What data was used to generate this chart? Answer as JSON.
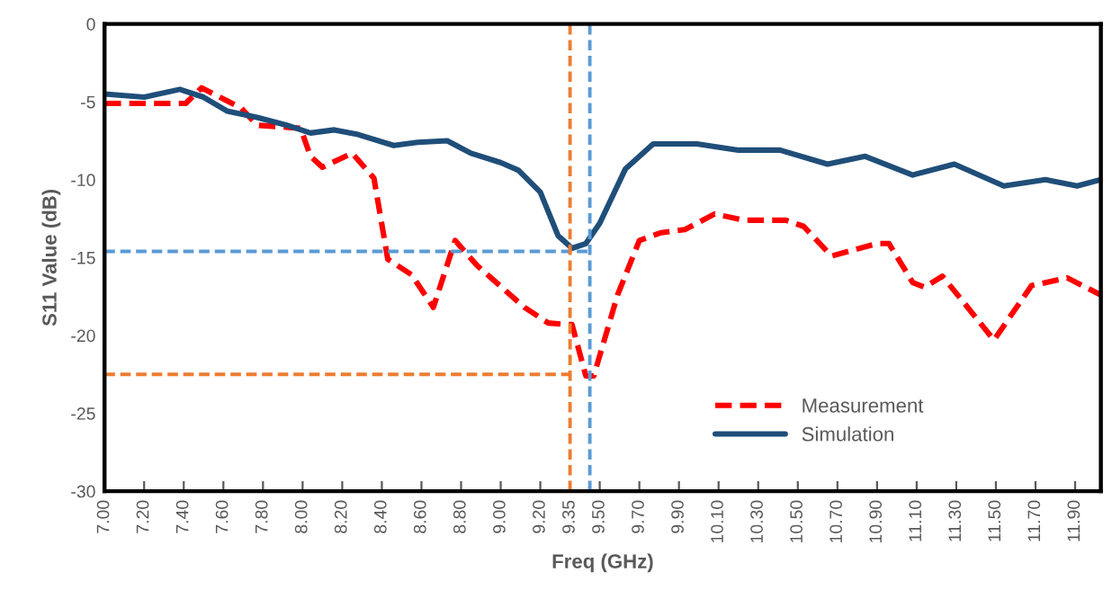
{
  "chart_data": {
    "type": "line",
    "xlabel": "Freq (GHz)",
    "ylabel": "S11 Value (dB)",
    "xlim": [
      7.0,
      12.03
    ],
    "ylim": [
      -30,
      0
    ],
    "xticks": [
      {
        "value": 7.0,
        "label": "7.00"
      },
      {
        "value": 7.2,
        "label": "7.20"
      },
      {
        "value": 7.4,
        "label": "7.40"
      },
      {
        "value": 7.6,
        "label": "7.60"
      },
      {
        "value": 7.8,
        "label": "7.80"
      },
      {
        "value": 8.0,
        "label": "8.00"
      },
      {
        "value": 8.2,
        "label": "8.20"
      },
      {
        "value": 8.4,
        "label": "8.40"
      },
      {
        "value": 8.6,
        "label": "8.60"
      },
      {
        "value": 8.8,
        "label": "8.80"
      },
      {
        "value": 9.0,
        "label": "9.00"
      },
      {
        "value": 9.2,
        "label": "9.20"
      },
      {
        "value": 9.35,
        "label": "9.35"
      },
      {
        "value": 9.5,
        "label": "9.50"
      },
      {
        "value": 9.7,
        "label": "9.70"
      },
      {
        "value": 9.9,
        "label": "9.90"
      },
      {
        "value": 10.1,
        "label": "10.10"
      },
      {
        "value": 10.3,
        "label": "10.30"
      },
      {
        "value": 10.5,
        "label": "10.50"
      },
      {
        "value": 10.7,
        "label": "10.70"
      },
      {
        "value": 10.9,
        "label": "10.90"
      },
      {
        "value": 11.1,
        "label": "11.10"
      },
      {
        "value": 11.3,
        "label": "11.30"
      },
      {
        "value": 11.5,
        "label": "11.50"
      },
      {
        "value": 11.7,
        "label": "11.70"
      },
      {
        "value": 11.9,
        "label": "11.90"
      }
    ],
    "yticks": [
      0,
      -5,
      -10,
      -15,
      -20,
      -25,
      -30
    ],
    "grid": false,
    "legend": "bottom right",
    "marker": "none",
    "ref_lines": [
      {
        "axis": "x",
        "value": 9.35,
        "color": "#ed7d31",
        "line_style": "dashed"
      },
      {
        "axis": "x",
        "value": 9.45,
        "color": "#5b9bd5",
        "line_style": "dashed"
      }
    ],
    "series": [
      {
        "name": "Measurement",
        "color": "#ff0000",
        "line_style": "dashed",
        "x": [
          7.0,
          7.41,
          7.49,
          7.69,
          7.77,
          7.99,
          8.04,
          8.1,
          8.25,
          8.36,
          8.43,
          8.55,
          8.66,
          8.77,
          8.88,
          9.12,
          9.24,
          9.33,
          9.36,
          9.43,
          9.47,
          9.59,
          9.7,
          9.81,
          9.93,
          10.08,
          10.23,
          10.44,
          10.53,
          10.67,
          10.9,
          10.96,
          11.08,
          11.14,
          11.23,
          11.32,
          11.49,
          11.68,
          11.86,
          12.03
        ],
        "values": [
          -5.1,
          -5.1,
          -4.1,
          -5.4,
          -6.5,
          -6.7,
          -8.5,
          -9.2,
          -8.3,
          -9.9,
          -15.1,
          -16.1,
          -18.2,
          -13.9,
          -15.5,
          -18.2,
          -19.2,
          -19.3,
          -19.3,
          -22.6,
          -22.6,
          -17.4,
          -13.9,
          -13.4,
          -13.2,
          -12.2,
          -12.6,
          -12.6,
          -13.0,
          -14.9,
          -14.1,
          -14.1,
          -16.6,
          -16.9,
          -16.2,
          -17.6,
          -20.3,
          -16.8,
          -16.3,
          -17.4
        ]
      },
      {
        "name": "Simulation",
        "color": "#1f4e79",
        "line_style": "solid",
        "x": [
          7.0,
          7.2,
          7.38,
          7.5,
          7.62,
          7.77,
          7.92,
          8.04,
          8.16,
          8.28,
          8.46,
          8.58,
          8.73,
          8.85,
          9.0,
          9.09,
          9.2,
          9.29,
          9.36,
          9.43,
          9.5,
          9.63,
          9.77,
          9.99,
          10.2,
          10.41,
          10.65,
          10.84,
          11.08,
          11.29,
          11.54,
          11.75,
          11.91,
          12.03
        ],
        "values": [
          -4.5,
          -4.7,
          -4.2,
          -4.7,
          -5.6,
          -6.0,
          -6.5,
          -7.0,
          -6.8,
          -7.1,
          -7.8,
          -7.6,
          -7.5,
          -8.3,
          -8.9,
          -9.4,
          -10.8,
          -13.6,
          -14.4,
          -14.1,
          -12.8,
          -9.3,
          -7.7,
          -7.7,
          -8.1,
          -8.1,
          -9.0,
          -8.5,
          -9.7,
          -9.0,
          -10.4,
          -10.0,
          -10.4,
          -10.0
        ]
      },
      {
        "color": "#5b9bd5",
        "line_style": "dashed",
        "x": [
          7.0,
          9.45
        ],
        "values": [
          -14.6,
          -14.6
        ]
      },
      {
        "color": "#ed7d31",
        "line_style": "dashed",
        "x": [
          7.0,
          9.35
        ],
        "values": [
          -22.5,
          -22.5
        ]
      }
    ]
  }
}
